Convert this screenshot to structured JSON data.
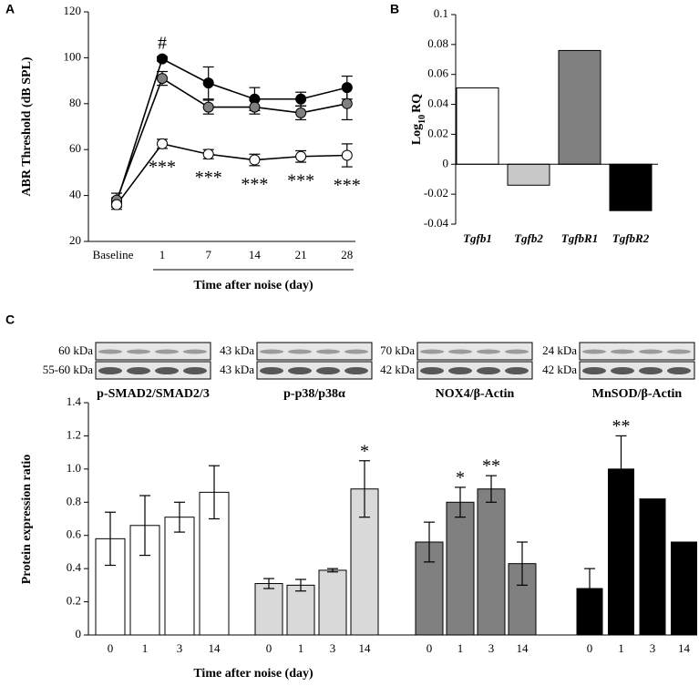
{
  "chart_data": [
    {
      "type": "line",
      "panel": "A",
      "ylabel": "ABR Threshold (dB SPL)",
      "xlabel": "Time after noise (day)",
      "categories": [
        "Baseline",
        "1",
        "7",
        "14",
        "21",
        "28"
      ],
      "ylim": [
        20,
        120
      ],
      "yticks": [
        20,
        40,
        60,
        80,
        100,
        120
      ],
      "series": [
        {
          "color": "#000000",
          "values": [
            37,
            99.5,
            89,
            82,
            82,
            87
          ],
          "errors": [
            2,
            1,
            7,
            5,
            3,
            5
          ],
          "value_annotations": [
            null,
            "#",
            null,
            null,
            null,
            null
          ]
        },
        {
          "color": "#808080",
          "values": [
            38,
            91,
            78.5,
            78.5,
            76,
            80
          ],
          "errors": [
            3,
            3,
            3,
            3,
            3,
            7
          ],
          "value_annotations": [
            null,
            null,
            null,
            null,
            null,
            null
          ]
        },
        {
          "color": "#ffffff",
          "values": [
            36,
            62.5,
            58,
            55.5,
            57,
            57.5
          ],
          "errors": [
            2,
            2,
            2,
            2.5,
            2.5,
            5
          ],
          "value_annotations": [
            null,
            "***",
            "***",
            "***",
            "***",
            "***"
          ]
        }
      ]
    },
    {
      "type": "bar",
      "panel": "B",
      "ylabel": [
        "Log",
        "10",
        "RQ"
      ],
      "categories": [
        "Tgfb1",
        "Tgfb2",
        "TgfbR1",
        "TgfbR2"
      ],
      "values": [
        0.051,
        -0.014,
        0.076,
        -0.031
      ],
      "colors": [
        "#ffffff",
        "#c8c8c8",
        "#808080",
        "#000000"
      ],
      "ylim": [
        -0.04,
        0.1
      ],
      "yticks": [
        -0.04,
        -0.02,
        0,
        0.02,
        0.04,
        0.06,
        0.08,
        0.1
      ]
    },
    {
      "type": "bar",
      "panel": "C",
      "ylabel": "Protein expression ratio",
      "xlabel": "Time after noise (day)",
      "categories": [
        "0",
        "1",
        "3",
        "14"
      ],
      "ylim": [
        0,
        1.4
      ],
      "yticks": [
        0,
        0.2,
        0.4,
        0.6,
        0.8,
        {
          "value": 1,
          "label": "1.0"
        },
        1.2,
        1.4
      ],
      "series": [
        {
          "name": "p-SMAD2/SMAD2/3",
          "color": "#ffffff",
          "blot_bands": [
            "60 kDa",
            "55-60 kDa"
          ],
          "values": [
            0.58,
            0.66,
            0.71,
            0.86
          ],
          "errors": [
            0.16,
            0.18,
            0.09,
            0.16
          ],
          "value_annotations": [
            null,
            null,
            null,
            null
          ]
        },
        {
          "name": "p-p38/p38α",
          "color": "#d9d9d9",
          "blot_bands": [
            "43 kDa",
            "43 kDa"
          ],
          "values": [
            0.31,
            0.3,
            0.39,
            0.88
          ],
          "errors": [
            0.03,
            0.035,
            0.01,
            0.17
          ],
          "value_annotations": [
            null,
            null,
            null,
            "*"
          ]
        },
        {
          "name": "NOX4/β-Actin",
          "color": "#808080",
          "blot_bands": [
            "70 kDa",
            "42 kDa"
          ],
          "values": [
            0.56,
            0.8,
            0.88,
            0.43
          ],
          "errors": [
            0.12,
            0.09,
            0.08,
            0.13
          ],
          "value_annotations": [
            null,
            "*",
            "**",
            null
          ]
        },
        {
          "name": "MnSOD/β-Actin",
          "color": "#000000",
          "blot_bands": [
            "24 kDa",
            "42 kDa"
          ],
          "values": [
            0.28,
            1.0,
            0.82,
            0.56
          ],
          "errors": [
            0.12,
            0.2,
            null,
            null
          ],
          "value_annotations": [
            null,
            "**",
            null,
            null
          ]
        }
      ]
    }
  ]
}
